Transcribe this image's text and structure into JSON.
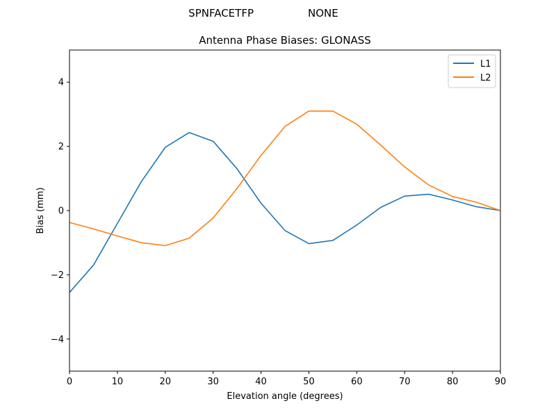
{
  "chart_data": {
    "type": "line",
    "suptitle_left": "SPNFACETFP",
    "suptitle_right": "NONE",
    "title": "Antenna Phase Biases: GLONASS",
    "xlabel": "Elevation angle (degrees)",
    "ylabel": "Bias (mm)",
    "xlim": [
      0,
      90
    ],
    "ylim": [
      -5,
      5
    ],
    "xticks": [
      0,
      10,
      20,
      30,
      40,
      50,
      60,
      70,
      80,
      90
    ],
    "yticks": [
      -4,
      -2,
      0,
      2,
      4
    ],
    "ytick_labels": [
      "−4",
      "−2",
      "0",
      "2",
      "4"
    ],
    "legend_position": "top-right",
    "x": [
      0,
      5,
      10,
      15,
      20,
      25,
      30,
      35,
      40,
      45,
      50,
      55,
      60,
      65,
      70,
      75,
      80,
      85,
      90
    ],
    "series": [
      {
        "name": "L1",
        "color": "#1f77b4",
        "values": [
          -2.55,
          -1.7,
          -0.4,
          0.9,
          1.97,
          2.43,
          2.16,
          1.3,
          0.23,
          -0.62,
          -1.03,
          -0.93,
          -0.45,
          0.1,
          0.45,
          0.51,
          0.33,
          0.12,
          0.0
        ]
      },
      {
        "name": "L2",
        "color": "#ff7f0e",
        "values": [
          -0.37,
          -0.57,
          -0.79,
          -1.0,
          -1.09,
          -0.86,
          -0.23,
          0.69,
          1.72,
          2.62,
          3.1,
          3.1,
          2.69,
          2.04,
          1.36,
          0.8,
          0.44,
          0.26,
          0.0
        ]
      }
    ]
  }
}
